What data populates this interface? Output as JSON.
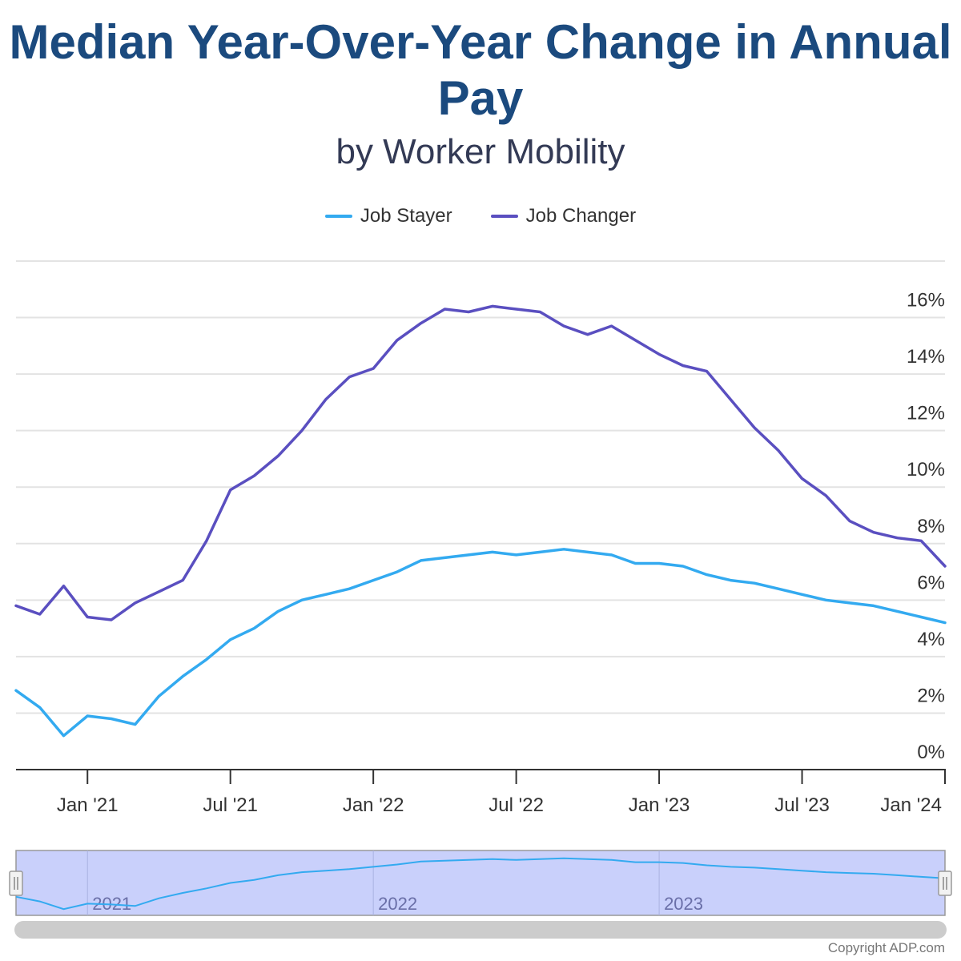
{
  "chart_data": {
    "type": "line",
    "title": "Median Year-Over-Year Change in Annual Pay",
    "subtitle": "by Worker Mobility",
    "y_ticks": [
      "0%",
      "2%",
      "4%",
      "6%",
      "8%",
      "10%",
      "12%",
      "14%",
      "16%"
    ],
    "ylim": [
      0,
      18
    ],
    "x_ticks": [
      {
        "label": "Jan '21",
        "date": "2021-01"
      },
      {
        "label": "Jul '21",
        "date": "2021-07"
      },
      {
        "label": "Jan '22",
        "date": "2022-01"
      },
      {
        "label": "Jul '22",
        "date": "2022-07"
      },
      {
        "label": "Jan '23",
        "date": "2023-01"
      },
      {
        "label": "Jul '23",
        "date": "2023-07"
      },
      {
        "label": "Jan '24",
        "date": "2024-01"
      }
    ],
    "xlim": [
      "2020-10",
      "2024-01"
    ],
    "x": [
      "2020-10",
      "2020-11",
      "2020-12",
      "2021-01",
      "2021-02",
      "2021-03",
      "2021-04",
      "2021-05",
      "2021-06",
      "2021-07",
      "2021-08",
      "2021-09",
      "2021-10",
      "2021-11",
      "2021-12",
      "2022-01",
      "2022-02",
      "2022-03",
      "2022-04",
      "2022-05",
      "2022-06",
      "2022-07",
      "2022-08",
      "2022-09",
      "2022-10",
      "2022-11",
      "2022-12",
      "2023-01",
      "2023-02",
      "2023-03",
      "2023-04",
      "2023-05",
      "2023-06",
      "2023-07",
      "2023-08",
      "2023-09",
      "2023-10",
      "2023-11",
      "2023-12",
      "2024-01"
    ],
    "series": [
      {
        "name": "Job Stayer",
        "color": "#33aaf0",
        "values": [
          2.8,
          2.2,
          1.2,
          1.9,
          1.8,
          1.6,
          2.6,
          3.3,
          3.9,
          4.6,
          5.0,
          5.6,
          6.0,
          6.2,
          6.4,
          6.7,
          7.0,
          7.4,
          7.5,
          7.6,
          7.7,
          7.6,
          7.7,
          7.8,
          7.7,
          7.6,
          7.3,
          7.3,
          7.2,
          6.9,
          6.7,
          6.6,
          6.4,
          6.2,
          6.0,
          5.9,
          5.8,
          5.6,
          5.4,
          5.2
        ]
      },
      {
        "name": "Job Changer",
        "color": "#5a4fc0",
        "values": [
          5.8,
          5.5,
          6.5,
          5.4,
          5.3,
          5.9,
          6.3,
          6.7,
          8.1,
          9.9,
          10.4,
          11.1,
          12.0,
          13.1,
          13.9,
          14.2,
          15.2,
          15.8,
          16.3,
          16.2,
          16.4,
          16.3,
          16.2,
          15.7,
          15.4,
          15.7,
          15.2,
          14.7,
          14.3,
          14.1,
          13.1,
          12.1,
          11.3,
          10.3,
          9.7,
          8.8,
          8.4,
          8.2,
          8.1,
          7.2
        ]
      }
    ],
    "legend_position": "top",
    "grid": true,
    "y_axis_position": "right"
  },
  "navigator": {
    "labels": [
      "2021",
      "2022",
      "2023"
    ]
  },
  "footer": {
    "copyright": "Copyright ADP.com"
  }
}
